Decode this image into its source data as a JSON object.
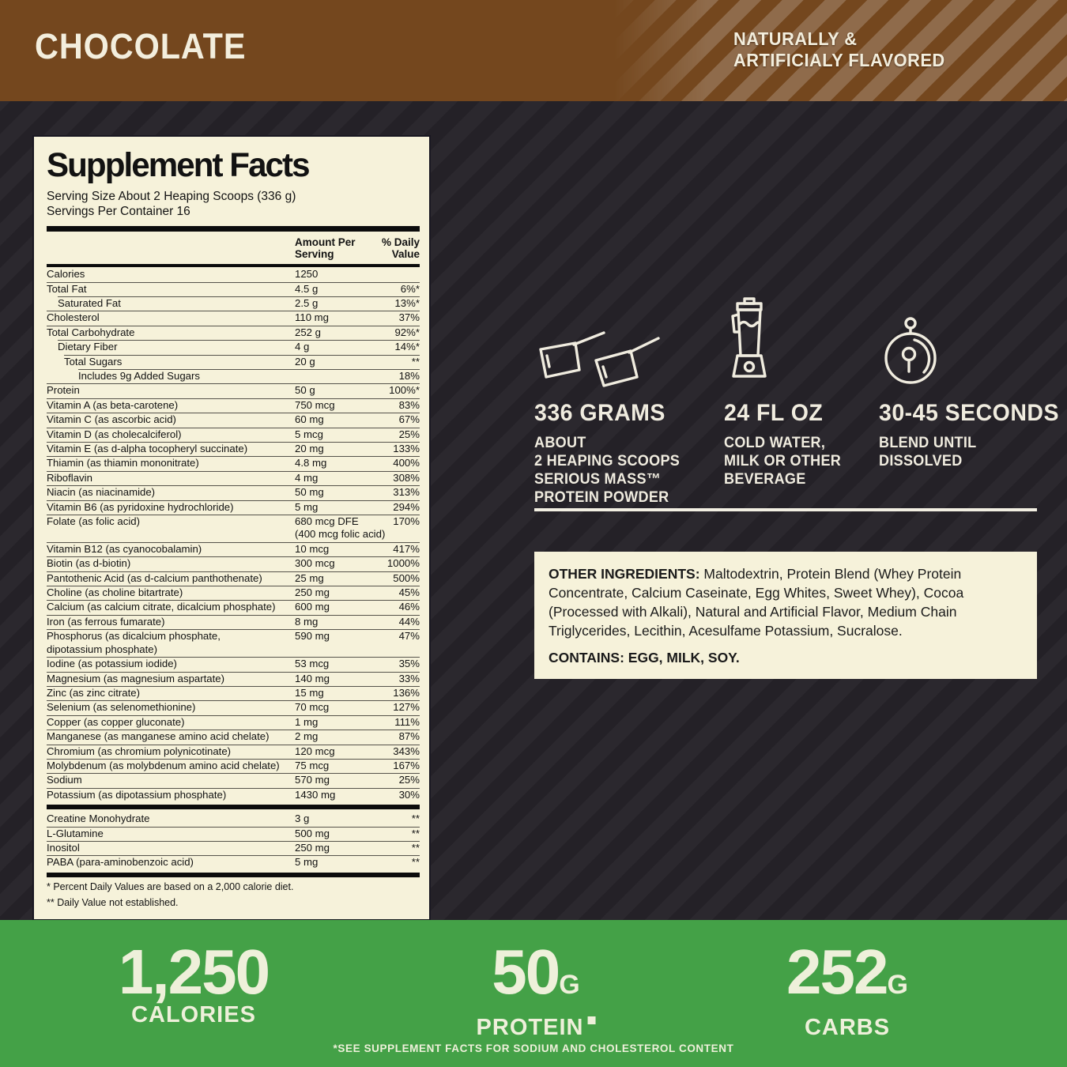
{
  "flavor_banner": {
    "flavor": "CHOCOLATE",
    "note_line1": "NATURALLY &",
    "note_line2": "ARTIFICIALY FLAVORED"
  },
  "supplement_facts": {
    "title": "Supplement Facts",
    "serving_size": "Serving Size About 2 Heaping Scoops (336 g)",
    "servings_per_container": "Servings Per Container 16",
    "col_amount_line1": "Amount Per",
    "col_amount_line2": "Serving",
    "col_dv_line1": "% Daily",
    "col_dv_line2": "Value",
    "rows_main": [
      {
        "name": "Calories",
        "amount": "1250",
        "dv": ""
      },
      {
        "name": "Total Fat",
        "amount": "4.5 g",
        "dv": "6%*"
      },
      {
        "name": "Saturated Fat",
        "amount": "2.5 g",
        "dv": "13%*",
        "indent": 1
      },
      {
        "name": "Cholesterol",
        "amount": "110 mg",
        "dv": "37%"
      },
      {
        "name": "Total Carbohydrate",
        "amount": "252 g",
        "dv": "92%*"
      },
      {
        "name": "Dietary Fiber",
        "amount": "4 g",
        "dv": "14%*",
        "indent": 1
      },
      {
        "name": "Total Sugars",
        "amount": "20 g",
        "dv": "**",
        "indent": 2
      },
      {
        "name": "Includes 9g Added Sugars",
        "amount": "",
        "dv": "18%",
        "indent": 3
      },
      {
        "name": "Protein",
        "amount": "50 g",
        "dv": "100%*"
      },
      {
        "name": "Vitamin A (as beta-carotene)",
        "amount": "750 mcg",
        "dv": "83%"
      },
      {
        "name": "Vitamin C (as ascorbic acid)",
        "amount": "60 mg",
        "dv": "67%"
      },
      {
        "name": "Vitamin D (as cholecalciferol)",
        "amount": "5 mcg",
        "dv": "25%"
      },
      {
        "name": "Vitamin E (as d-alpha tocopheryl succinate)",
        "amount": "20 mg",
        "dv": "133%"
      },
      {
        "name": "Thiamin (as thiamin mononitrate)",
        "amount": "4.8 mg",
        "dv": "400%"
      },
      {
        "name": "Riboflavin",
        "amount": "4 mg",
        "dv": "308%"
      },
      {
        "name": "Niacin (as niacinamide)",
        "amount": "50 mg",
        "dv": "313%"
      },
      {
        "name": "Vitamin B6 (as pyridoxine hydrochloride)",
        "amount": "5 mg",
        "dv": "294%"
      },
      {
        "name": "Folate (as folic acid)",
        "amount": "680 mcg DFE",
        "amount2": "(400 mcg folic acid)",
        "dv": "170%"
      },
      {
        "name": "Vitamin B12 (as cyanocobalamin)",
        "amount": "10 mcg",
        "dv": "417%"
      },
      {
        "name": "Biotin (as d-biotin)",
        "amount": "300 mcg",
        "dv": "1000%"
      },
      {
        "name": "Pantothenic Acid (as d-calcium panthothenate)",
        "amount": "25 mg",
        "dv": "500%"
      },
      {
        "name": "Choline (as choline bitartrate)",
        "amount": "250 mg",
        "dv": "45%"
      },
      {
        "name": "Calcium (as calcium citrate, dicalcium phosphate)",
        "amount": "600 mg",
        "dv": "46%"
      },
      {
        "name": "Iron (as ferrous fumarate)",
        "amount": "8 mg",
        "dv": "44%"
      },
      {
        "name": "Phosphorus (as dicalcium phosphate,",
        "name2": "dipotassium phosphate)",
        "amount": "590 mg",
        "dv": "47%"
      },
      {
        "name": "Iodine (as potassium iodide)",
        "amount": "53 mcg",
        "dv": "35%"
      },
      {
        "name": "Magnesium (as magnesium aspartate)",
        "amount": "140 mg",
        "dv": "33%"
      },
      {
        "name": "Zinc (as zinc citrate)",
        "amount": "15 mg",
        "dv": "136%"
      },
      {
        "name": "Selenium (as selenomethionine)",
        "amount": "70 mcg",
        "dv": "127%"
      },
      {
        "name": "Copper (as copper gluconate)",
        "amount": "1 mg",
        "dv": "111%"
      },
      {
        "name": "Manganese (as manganese amino acid chelate)",
        "amount": "2 mg",
        "dv": "87%"
      },
      {
        "name": "Chromium (as chromium polynicotinate)",
        "amount": "120 mcg",
        "dv": "343%"
      },
      {
        "name": "Molybdenum (as molybdenum amino acid chelate)",
        "amount": "75 mcg",
        "dv": "167%"
      },
      {
        "name": "Sodium",
        "amount": "570 mg",
        "dv": "25%"
      },
      {
        "name": "Potassium (as dipotassium phosphate)",
        "amount": "1430 mg",
        "dv": "30%"
      }
    ],
    "rows_extra": [
      {
        "name": "Creatine Monohydrate",
        "amount": "3 g",
        "dv": "**"
      },
      {
        "name": "L-Glutamine",
        "amount": "500 mg",
        "dv": "**"
      },
      {
        "name": "Inositol",
        "amount": "250 mg",
        "dv": "**"
      },
      {
        "name": "PABA (para-aminobenzoic acid)",
        "amount": "5 mg",
        "dv": "**"
      }
    ],
    "footnote1": "* Percent Daily Values are based on a 2,000 calorie diet.",
    "footnote2": "** Daily Value not established."
  },
  "directions": {
    "steps": [
      {
        "icon": "scoops-icon",
        "headline": "336 GRAMS",
        "line1": "ABOUT",
        "line2": "2 HEAPING SCOOPS",
        "line3": "SERIOUS MASS™",
        "line4": "PROTEIN POWDER"
      },
      {
        "icon": "blender-icon",
        "headline": "24 FL OZ",
        "line1": "COLD WATER,",
        "line2": "MILK OR OTHER",
        "line3": "BEVERAGE"
      },
      {
        "icon": "stopwatch-icon",
        "headline": "30-45 SECONDS",
        "line1": "BLEND UNTIL",
        "line2": "DISSOLVED"
      }
    ]
  },
  "other_ingredients": {
    "label": "OTHER INGREDIENTS:",
    "text": " Maltodextrin, Protein Blend (Whey Protein Concentrate, Calcium Caseinate, Egg Whites, Sweet Whey), Cocoa (Processed with Alkali), Natural and Artificial Flavor, Medium Chain Triglycerides, Lecithin, Acesulfame Potassium, Sucralose.",
    "contains": "CONTAINS: EGG, MILK, SOY."
  },
  "macros": {
    "items": [
      {
        "value": "1,250",
        "unit": "",
        "label": "CALORIES"
      },
      {
        "value": "50",
        "unit": "G",
        "label": "PROTEIN"
      },
      {
        "value": "252",
        "unit": "G",
        "label": "CARBS"
      }
    ],
    "footnote": "*SEE SUPPLEMENT FACTS FOR SODIUM AND CHOLESTEROL CONTENT"
  },
  "colors": {
    "brown": "#74471e",
    "dark_background": "#242127",
    "cream": "#f6f2da",
    "green": "#44a147"
  }
}
